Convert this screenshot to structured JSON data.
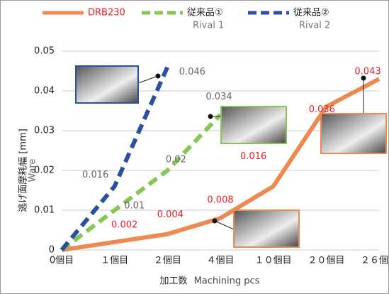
{
  "chart_data": {
    "type": "line",
    "categories": [
      "0個目",
      "１個目",
      "２個目",
      "４個目",
      "１０個目",
      "２０個目",
      "２６個目"
    ],
    "series": [
      {
        "name": "DRB230",
        "color": "#ec8a52",
        "dashed": false,
        "label_color": "#e8202a",
        "values": [
          0,
          0.002,
          0.004,
          0.008,
          0.016,
          0.036,
          0.043
        ]
      },
      {
        "name": "従来品①",
        "subname": "Rival 1",
        "color": "#86c556",
        "dashed": true,
        "label_color": "#666666",
        "values": [
          0,
          0.01,
          0.02,
          0.034,
          null,
          null,
          null
        ]
      },
      {
        "name": "従来品②",
        "subname": "Rival 2",
        "color": "#2d4f9f",
        "dashed": true,
        "label_color": "#666666",
        "values": [
          0,
          0.016,
          0.046,
          null,
          null,
          null,
          null
        ]
      }
    ],
    "ylim": [
      0,
      0.05
    ],
    "yticks": [
      0,
      0.01,
      0.02,
      0.03,
      0.04,
      0.05
    ],
    "grid": true,
    "ylabel": "逃げ面摩耗幅 [mm]",
    "ylabel_sub": "Ware",
    "xlabel": "加工数",
    "xlabel_sub": "Machining pcs"
  }
}
